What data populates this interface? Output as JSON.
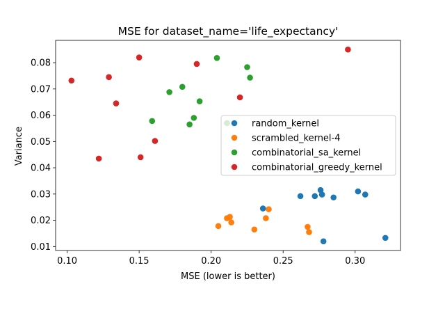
{
  "chart_data": {
    "type": "scatter",
    "title": "MSE for dataset_name='life_expectancy'",
    "xlabel": "MSE (lower is better)",
    "ylabel": "Variance",
    "xlim": [
      0.092,
      0.3315
    ],
    "ylim": [
      0.0085,
      0.0885
    ],
    "xticks": [
      0.1,
      0.15,
      0.2,
      0.25,
      0.3
    ],
    "xtick_labels": [
      "0.10",
      "0.15",
      "0.20",
      "0.25",
      "0.30"
    ],
    "yticks": [
      0.01,
      0.02,
      0.03,
      0.04,
      0.05,
      0.06,
      0.07,
      0.08
    ],
    "ytick_labels": [
      "0.01",
      "0.02",
      "0.03",
      "0.04",
      "0.05",
      "0.06",
      "0.07",
      "0.08"
    ],
    "grid": false,
    "legend_position": "center-right",
    "series": [
      {
        "name": "random_kernel",
        "color": "#1f77b4",
        "points": [
          [
            0.236,
            0.0245
          ],
          [
            0.262,
            0.0292
          ],
          [
            0.272,
            0.0292
          ],
          [
            0.276,
            0.0315
          ],
          [
            0.277,
            0.0298
          ],
          [
            0.285,
            0.0287
          ],
          [
            0.302,
            0.031
          ],
          [
            0.307,
            0.0298
          ],
          [
            0.278,
            0.012
          ],
          [
            0.321,
            0.0133
          ]
        ]
      },
      {
        "name": "scrambled_kernel-4",
        "color": "#ff7f0e",
        "points": [
          [
            0.205,
            0.0178
          ],
          [
            0.211,
            0.0208
          ],
          [
            0.213,
            0.0213
          ],
          [
            0.214,
            0.0192
          ],
          [
            0.23,
            0.0165
          ],
          [
            0.238,
            0.0208
          ],
          [
            0.24,
            0.0242
          ],
          [
            0.267,
            0.0175
          ],
          [
            0.268,
            0.0155
          ]
        ]
      },
      {
        "name": "combinatorial_sa_kernel",
        "color": "#2ca02c",
        "points": [
          [
            0.159,
            0.0578
          ],
          [
            0.171,
            0.0688
          ],
          [
            0.18,
            0.0708
          ],
          [
            0.185,
            0.0565
          ],
          [
            0.188,
            0.059
          ],
          [
            0.192,
            0.0653
          ],
          [
            0.204,
            0.0818
          ],
          [
            0.211,
            0.057
          ],
          [
            0.225,
            0.0783
          ],
          [
            0.227,
            0.0743
          ]
        ]
      },
      {
        "name": "combinatorial_greedy_kernel",
        "color": "#d62728",
        "points": [
          [
            0.103,
            0.0732
          ],
          [
            0.122,
            0.0435
          ],
          [
            0.129,
            0.0745
          ],
          [
            0.134,
            0.0645
          ],
          [
            0.15,
            0.082
          ],
          [
            0.151,
            0.044
          ],
          [
            0.161,
            0.0502
          ],
          [
            0.19,
            0.0795
          ],
          [
            0.22,
            0.0668
          ],
          [
            0.295,
            0.085
          ]
        ]
      }
    ]
  }
}
